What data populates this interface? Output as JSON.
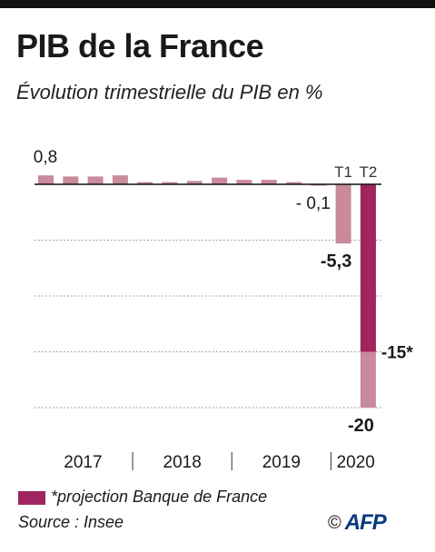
{
  "header": {
    "title": "PIB de la France",
    "subtitle": "Évolution trimestrielle du PIB en %"
  },
  "chart_data": {
    "type": "bar",
    "title": "PIB de la France",
    "subtitle": "Évolution trimestrielle du PIB en %",
    "unit": "%",
    "years": [
      "2017",
      "2018",
      "2019",
      "2020"
    ],
    "quarters_per_year": [
      4,
      4,
      4,
      2
    ],
    "categories": [
      "2017-T1",
      "2017-T2",
      "2017-T3",
      "2017-T4",
      "2018-T1",
      "2018-T2",
      "2018-T3",
      "2018-T4",
      "2019-T1",
      "2019-T2",
      "2019-T3",
      "2019-T4",
      "2020-T1",
      "2020-T2"
    ],
    "values": [
      0.8,
      0.7,
      0.7,
      0.8,
      0.2,
      0.2,
      0.3,
      0.6,
      0.4,
      0.4,
      0.2,
      -0.1,
      -5.3,
      -20
    ],
    "projection_values": [
      null,
      null,
      null,
      null,
      null,
      null,
      null,
      null,
      null,
      null,
      null,
      null,
      null,
      -15
    ],
    "quarter_tick_labels": {
      "2020-T1": "T1",
      "2020-T2": "T2"
    },
    "data_labels": [
      {
        "category": "2017-T1",
        "text": "0,8"
      },
      {
        "category": "2019-T4",
        "text": "- 0,1"
      },
      {
        "category": "2020-T1",
        "text": "-5,3"
      },
      {
        "category": "2020-T2",
        "text": "-20"
      },
      {
        "category": "2020-T2",
        "text": "-15*",
        "projection": true
      }
    ],
    "ylim": [
      -20,
      0.8
    ],
    "grid": true,
    "colors": {
      "actual": "#c98a9b",
      "projection": "#a0255e",
      "axis": "#111111",
      "grid": "#888888"
    }
  },
  "legend": {
    "text": "*projection Banque de France",
    "color": "#a0255e"
  },
  "source": {
    "text": "Source : Insee"
  },
  "credit": {
    "copyright": "©",
    "agency": "AFP"
  }
}
